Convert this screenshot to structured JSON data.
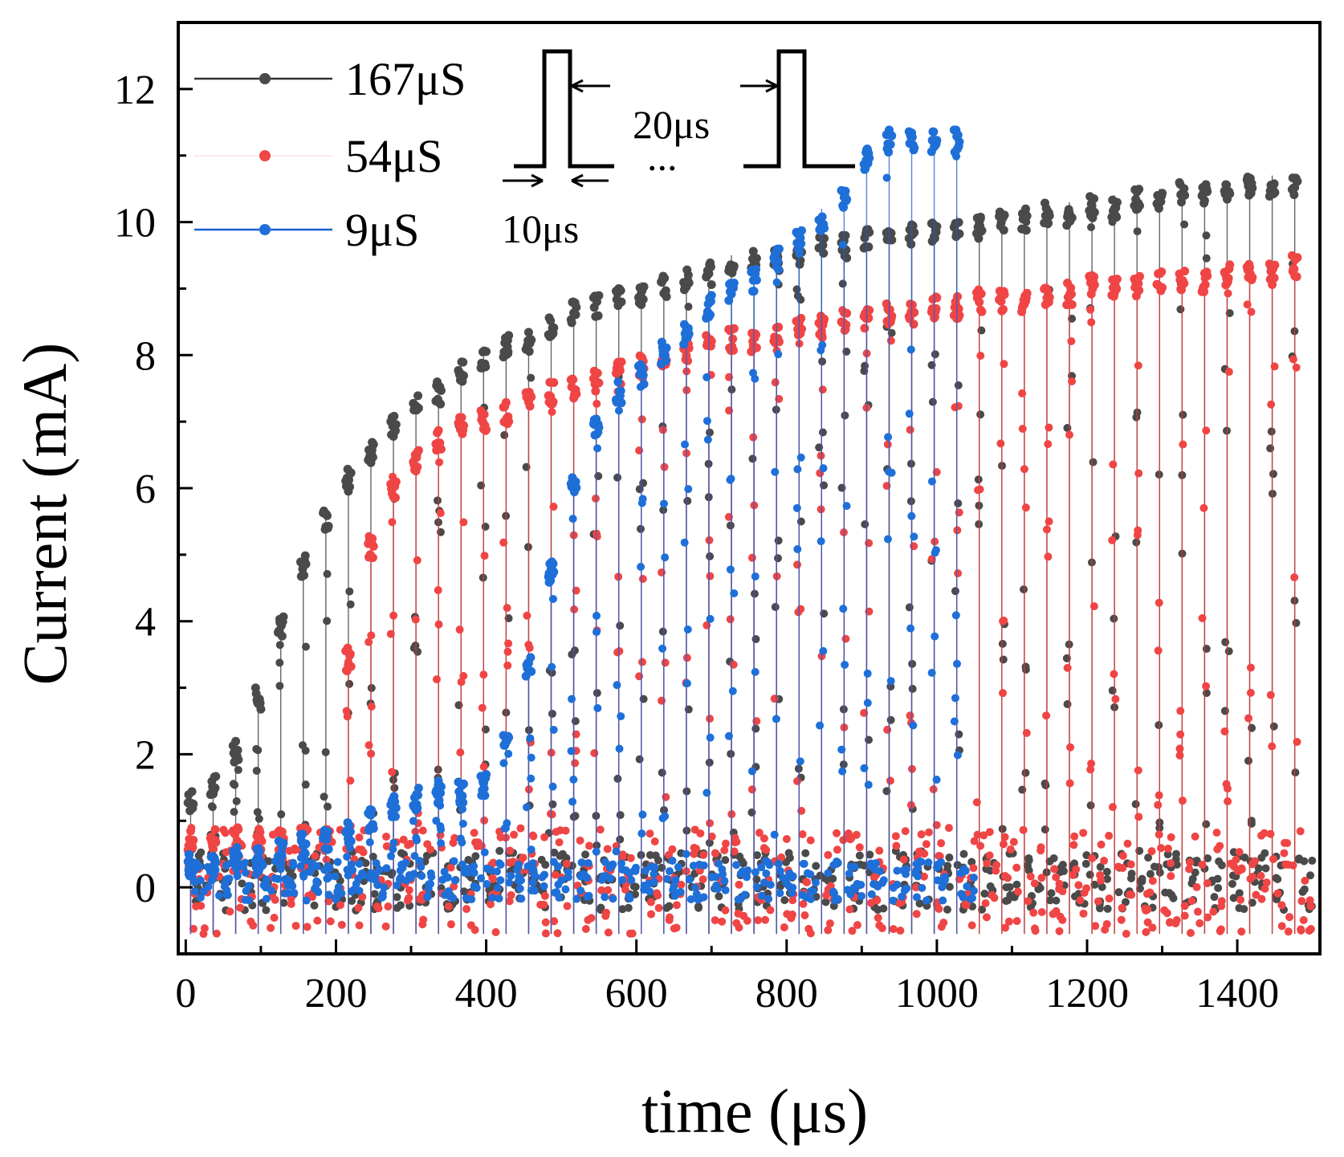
{
  "chart_data": {
    "type": "line",
    "title": "",
    "xlabel": "time (μs)",
    "ylabel": "Current (mA)",
    "xlim": [
      -10,
      1510
    ],
    "ylim": [
      -1,
      13
    ],
    "xticks": [
      0,
      200,
      400,
      600,
      800,
      1000,
      1200,
      1400
    ],
    "xtick_labels": [
      "0",
      "200",
      "400",
      "600",
      "800",
      "1000",
      "1200",
      "1400"
    ],
    "yticks": [
      0,
      2,
      4,
      6,
      8,
      10,
      12
    ],
    "ytick_labels": [
      "0",
      "2",
      "4",
      "6",
      "8",
      "10",
      "12"
    ],
    "grid": false,
    "legend_position": "top-left",
    "pulse_period_us": 30,
    "series": [
      {
        "name": "167μS",
        "color": "#4a4a4a",
        "line_color": "#333333",
        "pulse_starts_us": [
          0,
          30,
          60,
          90,
          120,
          150,
          180,
          210,
          240,
          270,
          300,
          330,
          360,
          390,
          420,
          450,
          480,
          510,
          540,
          570,
          600,
          630,
          660,
          690,
          720,
          750,
          780,
          810,
          840,
          870,
          900,
          930,
          960,
          990,
          1020,
          1050,
          1080,
          1110,
          1140,
          1170,
          1200,
          1230,
          1260,
          1290,
          1320,
          1350,
          1380,
          1410,
          1440,
          1470
        ],
        "peak_current_mA": [
          1.5,
          1.7,
          2.2,
          3.0,
          4.1,
          5.0,
          5.7,
          6.3,
          6.7,
          7.1,
          7.4,
          7.6,
          7.9,
          8.1,
          8.3,
          8.4,
          8.6,
          8.8,
          8.9,
          9.0,
          9.1,
          9.2,
          9.3,
          9.4,
          9.5,
          9.6,
          9.6,
          9.7,
          9.8,
          9.8,
          9.9,
          9.9,
          10.0,
          10.0,
          10.1,
          10.1,
          10.2,
          10.2,
          10.3,
          10.3,
          10.4,
          10.4,
          10.5,
          10.5,
          10.6,
          10.6,
          10.6,
          10.7,
          10.7,
          10.7
        ],
        "baseline_current_mA": 0.1
      },
      {
        "name": "54μS",
        "color": "#f04545",
        "line_color": "#e83535",
        "pulse_starts_us": [
          0,
          30,
          60,
          90,
          120,
          150,
          180,
          210,
          240,
          270,
          300,
          330,
          360,
          390,
          420,
          450,
          480,
          510,
          540,
          570,
          600,
          630,
          660,
          690,
          720,
          750,
          780,
          810,
          840,
          870,
          900,
          930,
          960,
          990,
          1020,
          1050,
          1080,
          1110,
          1140,
          1170,
          1200,
          1230,
          1260,
          1290,
          1320,
          1350,
          1380,
          1410,
          1440,
          1470
        ],
        "peak_current_mA": [
          0.9,
          0.9,
          0.9,
          0.9,
          0.9,
          0.9,
          1.0,
          3.6,
          5.3,
          6.2,
          6.6,
          6.9,
          7.1,
          7.2,
          7.3,
          7.5,
          7.6,
          7.7,
          7.8,
          7.9,
          8.0,
          8.1,
          8.2,
          8.3,
          8.4,
          8.4,
          8.5,
          8.6,
          8.6,
          8.7,
          8.7,
          8.8,
          8.8,
          8.9,
          8.9,
          9.0,
          9.0,
          9.0,
          9.1,
          9.1,
          9.2,
          9.2,
          9.2,
          9.3,
          9.3,
          9.3,
          9.4,
          9.4,
          9.4,
          9.5
        ],
        "baseline_current_mA": 0.1
      },
      {
        "name": "9μS",
        "color": "#1f6fd8",
        "line_color": "#1a5fd0",
        "pulse_starts_us": [
          0,
          30,
          60,
          90,
          120,
          150,
          180,
          210,
          240,
          270,
          300,
          330,
          360,
          390,
          420,
          450,
          480,
          510,
          540,
          570,
          600,
          630,
          660,
          690,
          720,
          750,
          780,
          810,
          840,
          870,
          900,
          930,
          960,
          990,
          1020
        ],
        "peak_current_mA": [
          0.5,
          0.5,
          0.6,
          0.6,
          0.7,
          0.8,
          0.9,
          1.0,
          1.2,
          1.4,
          1.5,
          1.6,
          1.6,
          1.7,
          2.3,
          3.5,
          4.9,
          6.2,
          7.1,
          7.6,
          7.9,
          8.2,
          8.5,
          8.9,
          9.1,
          9.3,
          9.6,
          9.9,
          10.2,
          10.5,
          11.1,
          11.4,
          11.4,
          11.4,
          11.4
        ],
        "baseline_current_mA": 0.1
      }
    ],
    "inset": {
      "description_label_period": "20μs",
      "description_label_width": "10μs",
      "ellipsis": "..."
    }
  }
}
